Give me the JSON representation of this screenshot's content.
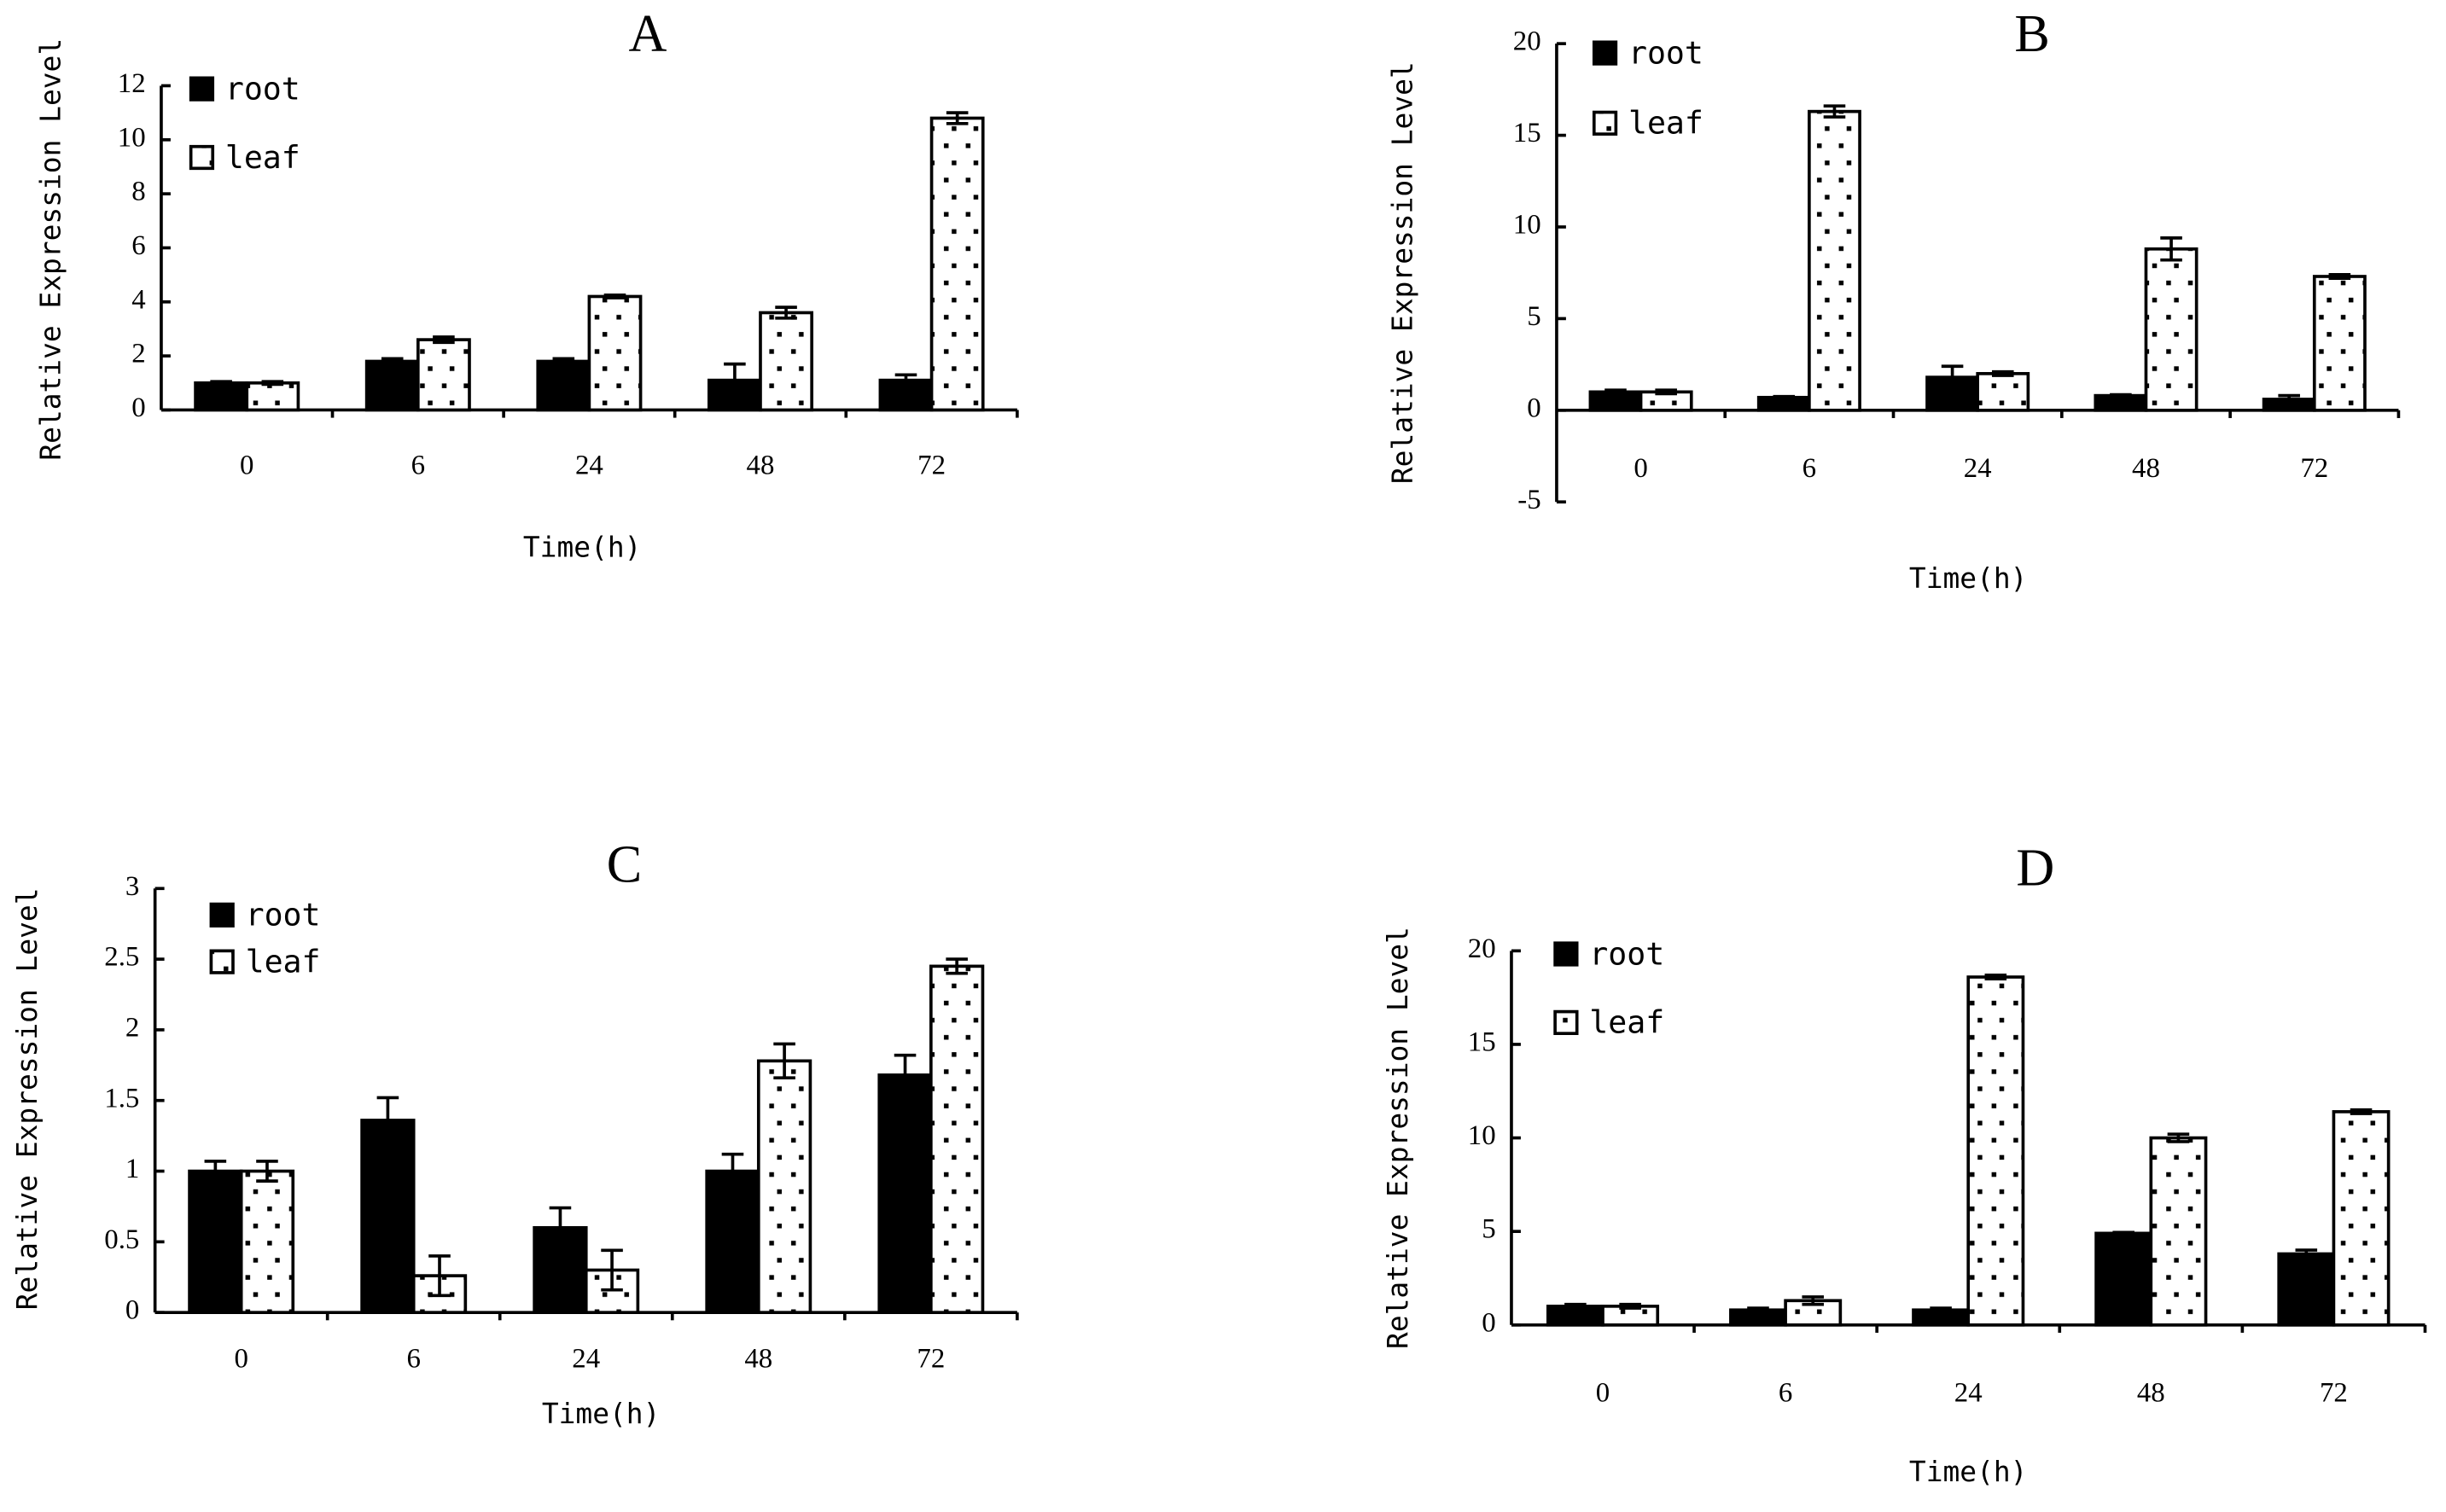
{
  "chart_data": [
    {
      "type": "bar",
      "title": "A",
      "xlabel": "Time(h)",
      "ylabel": "Relative Expression Level",
      "categories": [
        "0",
        "6",
        "24",
        "48",
        "72"
      ],
      "series": [
        {
          "name": "root",
          "color": "#000000",
          "values": [
            1.0,
            1.8,
            1.8,
            1.1,
            1.1
          ],
          "errors": [
            0.05,
            0.1,
            0.1,
            0.6,
            0.2
          ]
        },
        {
          "name": "leaf",
          "color": "#ffffff",
          "values": [
            1.0,
            2.6,
            4.2,
            3.6,
            10.8
          ],
          "errors": [
            0.05,
            0.1,
            0.05,
            0.2,
            0.2
          ]
        }
      ],
      "ylim": [
        0,
        12
      ],
      "yticks": [
        0,
        2,
        4,
        6,
        8,
        10,
        12
      ]
    },
    {
      "type": "bar",
      "title": "B",
      "xlabel": "Time(h)",
      "ylabel": "Relative Expression Level",
      "categories": [
        "0",
        "6",
        "24",
        "48",
        "72"
      ],
      "series": [
        {
          "name": "root",
          "color": "#000000",
          "values": [
            1.0,
            0.7,
            1.8,
            0.8,
            0.6
          ],
          "errors": [
            0.1,
            0.05,
            0.6,
            0.05,
            0.2
          ]
        },
        {
          "name": "leaf",
          "color": "#ffffff",
          "values": [
            1.0,
            16.3,
            2.0,
            8.8,
            7.3
          ],
          "errors": [
            0.1,
            0.3,
            0.1,
            0.6,
            0.1
          ]
        }
      ],
      "ylim": [
        -5,
        20
      ],
      "yticks": [
        -5,
        0,
        5,
        10,
        15,
        20
      ]
    },
    {
      "type": "bar",
      "title": "C",
      "xlabel": "Time(h)",
      "ylabel": "Relative Expression Level",
      "categories": [
        "0",
        "6",
        "24",
        "48",
        "72"
      ],
      "series": [
        {
          "name": "root",
          "color": "#000000",
          "values": [
            1.0,
            1.36,
            0.6,
            1.0,
            1.68
          ],
          "errors": [
            0.07,
            0.16,
            0.14,
            0.12,
            0.14
          ]
        },
        {
          "name": "leaf",
          "color": "#ffffff",
          "values": [
            1.0,
            0.26,
            0.3,
            1.78,
            2.45
          ],
          "errors": [
            0.07,
            0.14,
            0.14,
            0.12,
            0.05
          ]
        }
      ],
      "ylim": [
        0,
        3
      ],
      "yticks": [
        0,
        0.5,
        1,
        1.5,
        2,
        2.5,
        3
      ]
    },
    {
      "type": "bar",
      "title": "D",
      "xlabel": "Time(h)",
      "ylabel": "Relative Expression Level",
      "categories": [
        "0",
        "6",
        "24",
        "48",
        "72"
      ],
      "series": [
        {
          "name": "root",
          "color": "#000000",
          "values": [
            1.0,
            0.8,
            0.8,
            4.9,
            3.8
          ],
          "errors": [
            0.1,
            0.1,
            0.1,
            0.05,
            0.2
          ]
        },
        {
          "name": "leaf",
          "color": "#ffffff",
          "values": [
            1.0,
            1.3,
            18.6,
            10.0,
            11.4
          ],
          "errors": [
            0.1,
            0.2,
            0.1,
            0.2,
            0.1
          ]
        }
      ],
      "ylim": [
        0,
        20
      ],
      "yticks": [
        0,
        5,
        10,
        15,
        20
      ]
    }
  ]
}
